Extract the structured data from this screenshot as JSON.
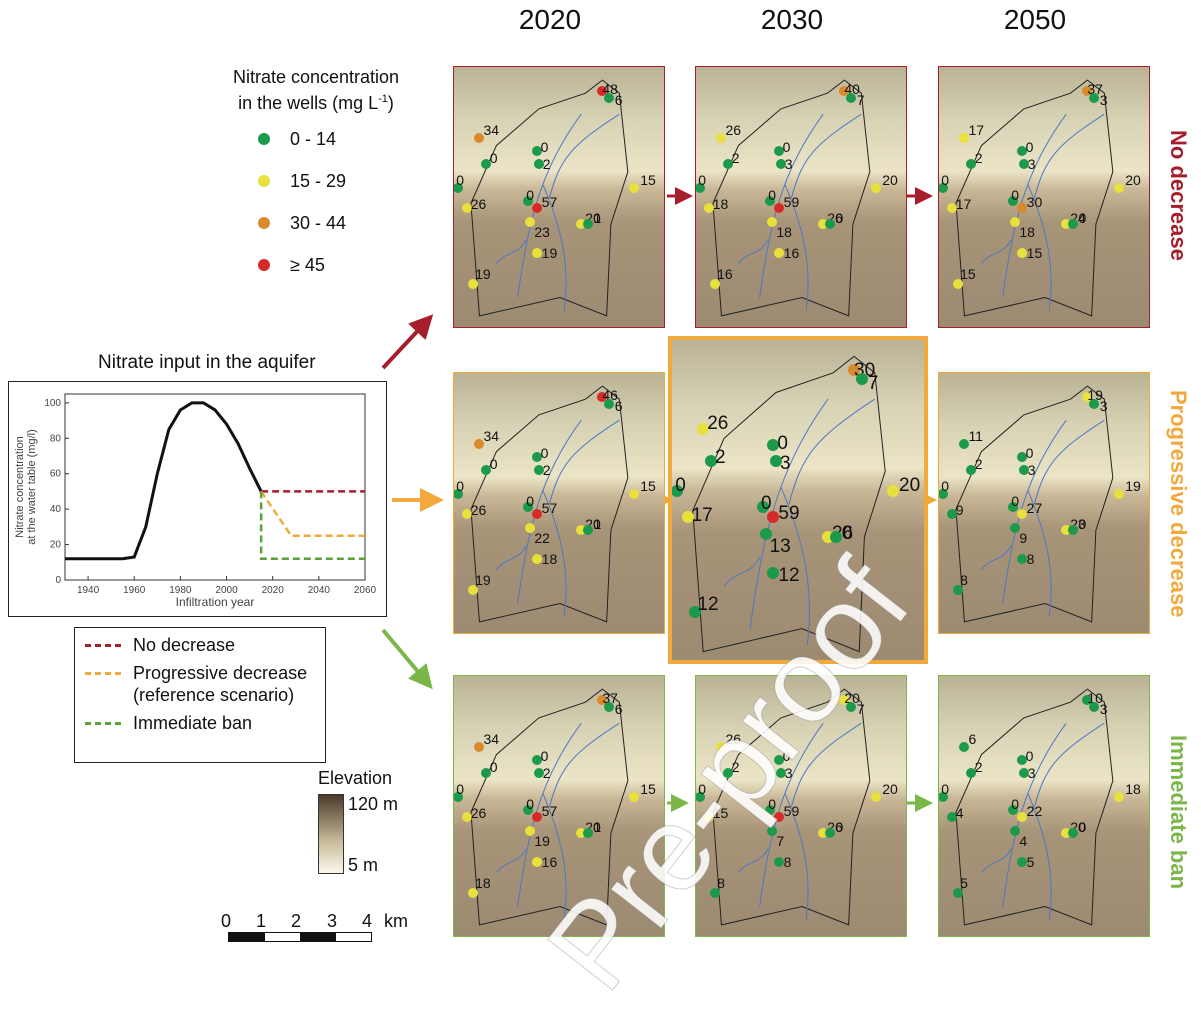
{
  "years": [
    "2020",
    "2030",
    "2050"
  ],
  "legend": {
    "title_line1": "Nitrate concentration",
    "title_line2_pre": "in the wells (mg L",
    "title_line2_sup": "-1",
    "title_line2_post": ")",
    "classes": [
      {
        "label": "0 - 14",
        "color": "#1a9a4a"
      },
      {
        "label": "15 - 29",
        "color": "#e8e03c"
      },
      {
        "label": "30 - 44",
        "color": "#d98a2b"
      },
      {
        "label": "≥ 45",
        "color": "#d62a2a"
      }
    ]
  },
  "row_labels": [
    {
      "text": "No decrease",
      "color": "#a61d2b"
    },
    {
      "text": "Progressive decrease",
      "color": "#f2a93b"
    },
    {
      "text": "Immediate ban",
      "color": "#7ab648"
    }
  ],
  "input_title": "Nitrate input in the aquifer",
  "chart_data": {
    "type": "line",
    "ylabel": "Nitrate concentration at the water table (mg/l)",
    "xlabel": "Infiltration year",
    "xlim": [
      1930,
      2060
    ],
    "ylim": [
      0,
      105
    ],
    "x_ticks": [
      "1940",
      "1960",
      "1980",
      "2000",
      "2020",
      "2040",
      "2060"
    ],
    "y_ticks": [
      "0",
      "20",
      "40",
      "60",
      "80",
      "100"
    ],
    "series": [
      {
        "name": "historical",
        "color": "#111111",
        "style": "solid",
        "x": [
          1930,
          1955,
          1960,
          1965,
          1970,
          1975,
          1980,
          1985,
          1990,
          1995,
          2000,
          2005,
          2010,
          2015
        ],
        "y": [
          12,
          12,
          13,
          30,
          60,
          85,
          96,
          100,
          100,
          96,
          88,
          77,
          63,
          50
        ]
      },
      {
        "name": "No decrease",
        "color": "#a61d2b",
        "style": "dashed",
        "x": [
          2015,
          2060
        ],
        "y": [
          50,
          50
        ]
      },
      {
        "name": "Progressive decrease",
        "color": "#f2a93b",
        "style": "dashed",
        "x": [
          2015,
          2028,
          2060
        ],
        "y": [
          50,
          25,
          25
        ]
      },
      {
        "name": "Immediate ban",
        "color": "#5aa33a",
        "style": "dashed",
        "x": [
          2015,
          2015,
          2060
        ],
        "y": [
          50,
          12,
          12
        ]
      }
    ]
  },
  "scenario_legend": [
    {
      "line1": "No decrease",
      "line2": "",
      "color": "#a61d2b"
    },
    {
      "line1": "Progressive decrease",
      "line2": "(reference scenario)",
      "color": "#f2a93b"
    },
    {
      "line1": "Immediate ban",
      "line2": "",
      "color": "#5aa33a"
    }
  ],
  "elevation": {
    "title": "Elevation",
    "max": "120 m",
    "min": "5 m"
  },
  "scalebar": {
    "ticks": [
      "0",
      "1",
      "2",
      "3",
      "4"
    ],
    "unit": "km"
  },
  "watermark": "Pre-proof",
  "maps": [
    {
      "id": "no-2020",
      "border": "#a61d2b",
      "wells": [
        {
          "v": "48",
          "c": "#d62a2a"
        },
        {
          "v": "6",
          "c": "#1a9a4a"
        },
        {
          "v": "34",
          "c": "#d98a2b"
        },
        {
          "v": "0",
          "c": "#1a9a4a"
        },
        {
          "v": "0",
          "c": "#1a9a4a"
        },
        {
          "v": "2",
          "c": "#1a9a4a"
        },
        {
          "v": "0",
          "c": "#1a9a4a"
        },
        {
          "v": "26",
          "c": "#e8e03c"
        },
        {
          "v": "15",
          "c": "#e8e03c"
        },
        {
          "v": "0",
          "c": "#1a9a4a"
        },
        {
          "v": "57",
          "c": "#d62a2a"
        },
        {
          "v": "20",
          "c": "#e8e03c"
        },
        {
          "v": "1",
          "c": "#1a9a4a"
        },
        {
          "v": "23",
          "c": "#e8e03c"
        },
        {
          "v": "19",
          "c": "#e8e03c"
        },
        {
          "v": "19",
          "c": "#e8e03c"
        }
      ]
    },
    {
      "id": "no-2030",
      "border": "#a61d2b",
      "wells": [
        {
          "v": "40",
          "c": "#d98a2b"
        },
        {
          "v": "7",
          "c": "#1a9a4a"
        },
        {
          "v": "26",
          "c": "#e8e03c"
        },
        {
          "v": "2",
          "c": "#1a9a4a"
        },
        {
          "v": "0",
          "c": "#1a9a4a"
        },
        {
          "v": "3",
          "c": "#1a9a4a"
        },
        {
          "v": "0",
          "c": "#1a9a4a"
        },
        {
          "v": "18",
          "c": "#e8e03c"
        },
        {
          "v": "20",
          "c": "#e8e03c"
        },
        {
          "v": "0",
          "c": "#1a9a4a"
        },
        {
          "v": "59",
          "c": "#d62a2a"
        },
        {
          "v": "26",
          "c": "#e8e03c"
        },
        {
          "v": "0",
          "c": "#1a9a4a"
        },
        {
          "v": "18",
          "c": "#e8e03c"
        },
        {
          "v": "16",
          "c": "#e8e03c"
        },
        {
          "v": "16",
          "c": "#e8e03c"
        }
      ]
    },
    {
      "id": "no-2050",
      "border": "#a61d2b",
      "wells": [
        {
          "v": "37",
          "c": "#d98a2b"
        },
        {
          "v": "3",
          "c": "#1a9a4a"
        },
        {
          "v": "17",
          "c": "#e8e03c"
        },
        {
          "v": "2",
          "c": "#1a9a4a"
        },
        {
          "v": "0",
          "c": "#1a9a4a"
        },
        {
          "v": "3",
          "c": "#1a9a4a"
        },
        {
          "v": "0",
          "c": "#1a9a4a"
        },
        {
          "v": "17",
          "c": "#e8e03c"
        },
        {
          "v": "20",
          "c": "#e8e03c"
        },
        {
          "v": "0",
          "c": "#1a9a4a"
        },
        {
          "v": "30",
          "c": "#d98a2b"
        },
        {
          "v": "24",
          "c": "#e8e03c"
        },
        {
          "v": "0",
          "c": "#1a9a4a"
        },
        {
          "v": "18",
          "c": "#e8e03c"
        },
        {
          "v": "15",
          "c": "#e8e03c"
        },
        {
          "v": "15",
          "c": "#e8e03c"
        }
      ]
    },
    {
      "id": "prog-2020",
      "border": "#f2a93b",
      "wells": [
        {
          "v": "46",
          "c": "#d62a2a"
        },
        {
          "v": "6",
          "c": "#1a9a4a"
        },
        {
          "v": "34",
          "c": "#d98a2b"
        },
        {
          "v": "0",
          "c": "#1a9a4a"
        },
        {
          "v": "0",
          "c": "#1a9a4a"
        },
        {
          "v": "2",
          "c": "#1a9a4a"
        },
        {
          "v": "0",
          "c": "#1a9a4a"
        },
        {
          "v": "26",
          "c": "#e8e03c"
        },
        {
          "v": "15",
          "c": "#e8e03c"
        },
        {
          "v": "0",
          "c": "#1a9a4a"
        },
        {
          "v": "57",
          "c": "#d62a2a"
        },
        {
          "v": "20",
          "c": "#e8e03c"
        },
        {
          "v": "1",
          "c": "#1a9a4a"
        },
        {
          "v": "22",
          "c": "#e8e03c"
        },
        {
          "v": "18",
          "c": "#e8e03c"
        },
        {
          "v": "19",
          "c": "#e8e03c"
        }
      ]
    },
    {
      "id": "prog-2030",
      "border": "#f2a93b",
      "wells": [
        {
          "v": "30",
          "c": "#d98a2b"
        },
        {
          "v": "7",
          "c": "#1a9a4a"
        },
        {
          "v": "26",
          "c": "#e8e03c"
        },
        {
          "v": "2",
          "c": "#1a9a4a"
        },
        {
          "v": "0",
          "c": "#1a9a4a"
        },
        {
          "v": "3",
          "c": "#1a9a4a"
        },
        {
          "v": "0",
          "c": "#1a9a4a"
        },
        {
          "v": "17",
          "c": "#e8e03c"
        },
        {
          "v": "20",
          "c": "#e8e03c"
        },
        {
          "v": "0",
          "c": "#1a9a4a"
        },
        {
          "v": "59",
          "c": "#d62a2a"
        },
        {
          "v": "26",
          "c": "#e8e03c"
        },
        {
          "v": "0",
          "c": "#1a9a4a"
        },
        {
          "v": "13",
          "c": "#1a9a4a"
        },
        {
          "v": "12",
          "c": "#1a9a4a"
        },
        {
          "v": "12",
          "c": "#1a9a4a"
        }
      ]
    },
    {
      "id": "prog-2050",
      "border": "#f2a93b",
      "wells": [
        {
          "v": "19",
          "c": "#e8e03c"
        },
        {
          "v": "3",
          "c": "#1a9a4a"
        },
        {
          "v": "11",
          "c": "#1a9a4a"
        },
        {
          "v": "2",
          "c": "#1a9a4a"
        },
        {
          "v": "0",
          "c": "#1a9a4a"
        },
        {
          "v": "3",
          "c": "#1a9a4a"
        },
        {
          "v": "0",
          "c": "#1a9a4a"
        },
        {
          "v": "9",
          "c": "#1a9a4a"
        },
        {
          "v": "19",
          "c": "#e8e03c"
        },
        {
          "v": "0",
          "c": "#1a9a4a"
        },
        {
          "v": "27",
          "c": "#e8e03c"
        },
        {
          "v": "23",
          "c": "#e8e03c"
        },
        {
          "v": "0",
          "c": "#1a9a4a"
        },
        {
          "v": "9",
          "c": "#1a9a4a"
        },
        {
          "v": "8",
          "c": "#1a9a4a"
        },
        {
          "v": "8",
          "c": "#1a9a4a"
        }
      ]
    },
    {
      "id": "ban-2020",
      "border": "#7ab648",
      "wells": [
        {
          "v": "37",
          "c": "#d98a2b"
        },
        {
          "v": "6",
          "c": "#1a9a4a"
        },
        {
          "v": "34",
          "c": "#d98a2b"
        },
        {
          "v": "0",
          "c": "#1a9a4a"
        },
        {
          "v": "0",
          "c": "#1a9a4a"
        },
        {
          "v": "2",
          "c": "#1a9a4a"
        },
        {
          "v": "0",
          "c": "#1a9a4a"
        },
        {
          "v": "26",
          "c": "#e8e03c"
        },
        {
          "v": "15",
          "c": "#e8e03c"
        },
        {
          "v": "0",
          "c": "#1a9a4a"
        },
        {
          "v": "57",
          "c": "#d62a2a"
        },
        {
          "v": "20",
          "c": "#e8e03c"
        },
        {
          "v": "1",
          "c": "#1a9a4a"
        },
        {
          "v": "19",
          "c": "#e8e03c"
        },
        {
          "v": "16",
          "c": "#e8e03c"
        },
        {
          "v": "18",
          "c": "#e8e03c"
        }
      ]
    },
    {
      "id": "ban-2030",
      "border": "#7ab648",
      "wells": [
        {
          "v": "20",
          "c": "#e8e03c"
        },
        {
          "v": "7",
          "c": "#1a9a4a"
        },
        {
          "v": "26",
          "c": "#e8e03c"
        },
        {
          "v": "2",
          "c": "#1a9a4a"
        },
        {
          "v": "0",
          "c": "#1a9a4a"
        },
        {
          "v": "3",
          "c": "#1a9a4a"
        },
        {
          "v": "0",
          "c": "#1a9a4a"
        },
        {
          "v": "15",
          "c": "#e8e03c"
        },
        {
          "v": "20",
          "c": "#e8e03c"
        },
        {
          "v": "0",
          "c": "#1a9a4a"
        },
        {
          "v": "59",
          "c": "#d62a2a"
        },
        {
          "v": "26",
          "c": "#e8e03c"
        },
        {
          "v": "0",
          "c": "#1a9a4a"
        },
        {
          "v": "7",
          "c": "#1a9a4a"
        },
        {
          "v": "8",
          "c": "#1a9a4a"
        },
        {
          "v": "8",
          "c": "#1a9a4a"
        }
      ]
    },
    {
      "id": "ban-2050",
      "border": "#7ab648",
      "wells": [
        {
          "v": "10",
          "c": "#1a9a4a"
        },
        {
          "v": "3",
          "c": "#1a9a4a"
        },
        {
          "v": "6",
          "c": "#1a9a4a"
        },
        {
          "v": "2",
          "c": "#1a9a4a"
        },
        {
          "v": "0",
          "c": "#1a9a4a"
        },
        {
          "v": "3",
          "c": "#1a9a4a"
        },
        {
          "v": "0",
          "c": "#1a9a4a"
        },
        {
          "v": "4",
          "c": "#1a9a4a"
        },
        {
          "v": "18",
          "c": "#e8e03c"
        },
        {
          "v": "0",
          "c": "#1a9a4a"
        },
        {
          "v": "22",
          "c": "#e8e03c"
        },
        {
          "v": "20",
          "c": "#e8e03c"
        },
        {
          "v": "0",
          "c": "#1a9a4a"
        },
        {
          "v": "4",
          "c": "#1a9a4a"
        },
        {
          "v": "5",
          "c": "#1a9a4a"
        },
        {
          "v": "5",
          "c": "#1a9a4a"
        }
      ]
    }
  ]
}
